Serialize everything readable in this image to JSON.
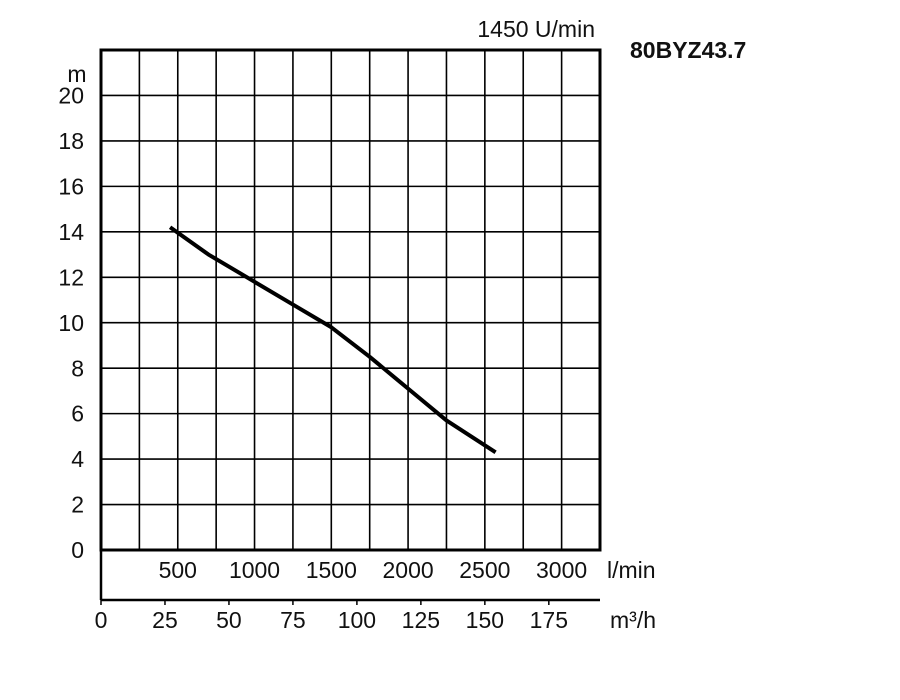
{
  "chart_data": {
    "type": "line",
    "title": "80BYZ43.7",
    "subtitle": "1450 U/min",
    "y_label": "m",
    "x_label": "l/min",
    "x2_label": "m³/h",
    "x": [
      450,
      700,
      1000,
      1250,
      1500,
      1750,
      2000,
      2250,
      2570
    ],
    "series": [
      {
        "color": "#000000",
        "values": [
          14.2,
          13.0,
          11.8,
          10.8,
          9.8,
          8.5,
          7.1,
          5.7,
          4.3
        ]
      }
    ],
    "xlim": [
      0,
      3250
    ],
    "xticks": [
      500,
      1000,
      1500,
      2000,
      2500,
      3000
    ],
    "x_grid": [
      250,
      500,
      750,
      1000,
      1250,
      1500,
      1750,
      2000,
      2250,
      2500,
      2750,
      3000
    ],
    "x2lim": [
      0,
      195
    ],
    "x2ticks": [
      0,
      25,
      50,
      75,
      100,
      125,
      150,
      175
    ],
    "ylim": [
      0,
      22
    ],
    "yticks": [
      0,
      2,
      4,
      6,
      8,
      10,
      12,
      14,
      16,
      18,
      20
    ],
    "grid": true
  }
}
